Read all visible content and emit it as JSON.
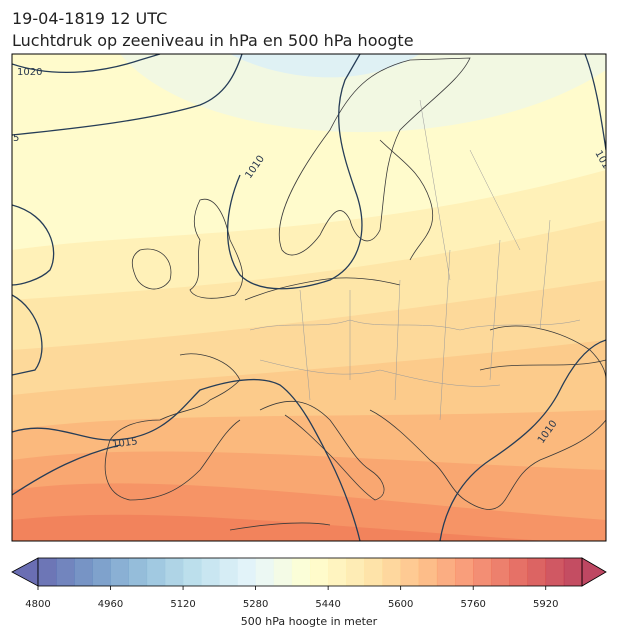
{
  "map": {
    "title": "19-04-1819 12 UTC",
    "subtitle": "Luchtdruk op zeeniveau in hPa en 500 hPa hoogte",
    "contour_labels": [
      "1020",
      "5",
      "1010",
      "1010",
      "1015",
      "101"
    ]
  },
  "colorbar": {
    "label": "500 hPa hoogte in meter",
    "lim": [
      4800,
      6000
    ],
    "ticks": [
      4800,
      4960,
      5120,
      5280,
      5440,
      5600,
      5760,
      5920
    ]
  }
}
